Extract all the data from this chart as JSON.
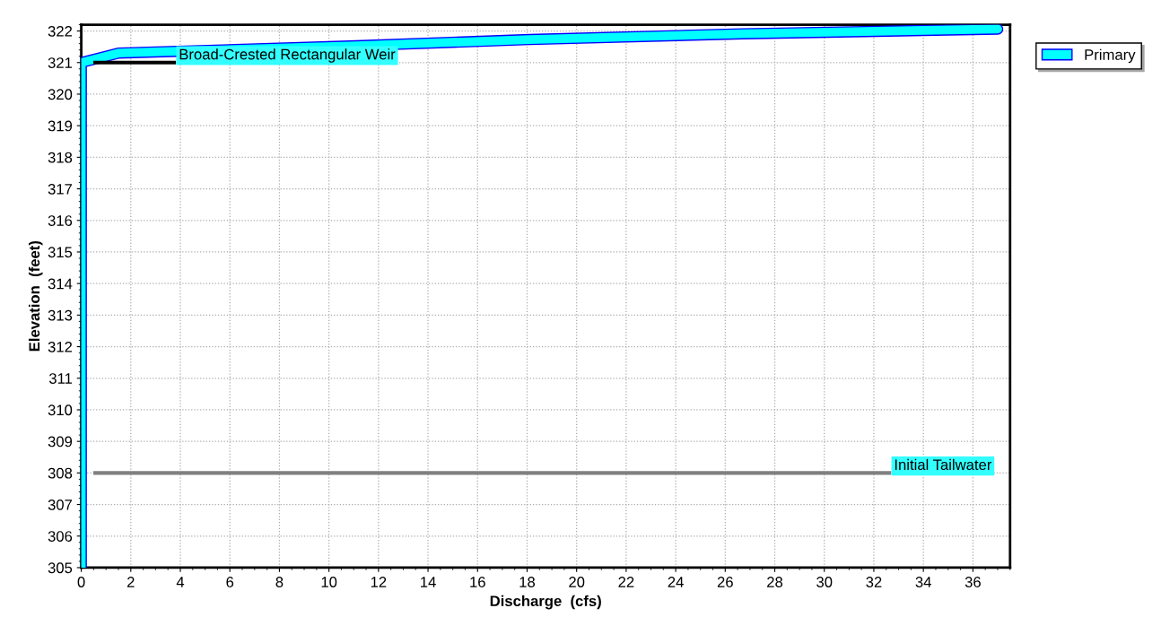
{
  "chart_data": {
    "type": "line",
    "xlabel": "Discharge  (cfs)",
    "ylabel": "Elevation  (feet)",
    "series": [
      {
        "name": "Primary",
        "color": "#00ffff",
        "x": [
          0,
          0,
          1.5,
          11.1,
          18.1,
          26.7,
          37.0
        ],
        "values": [
          305.0,
          321.0,
          321.3,
          321.53,
          321.73,
          321.91,
          322.06
        ]
      }
    ],
    "xlim": [
      0,
      37.5
    ],
    "xticks": [
      0,
      2,
      4,
      6,
      8,
      10,
      12,
      14,
      16,
      18,
      20,
      22,
      24,
      26,
      28,
      30,
      32,
      34,
      36
    ],
    "ylim": [
      305,
      322.2
    ],
    "yticks": [
      305,
      306,
      307,
      308,
      309,
      310,
      311,
      312,
      313,
      314,
      315,
      316,
      317,
      318,
      319,
      320,
      321,
      322
    ],
    "ref_lines": [
      {
        "axis": "y",
        "value": 321.0,
        "label": "Broad-Crested Rectangular Weir",
        "color": "#000000"
      },
      {
        "axis": "y",
        "value": 308.0,
        "label": "Initial Tailwater",
        "color": "#808080"
      }
    ],
    "grid": true,
    "legend": "top right",
    "marker": "none",
    "line_style": "solid"
  }
}
